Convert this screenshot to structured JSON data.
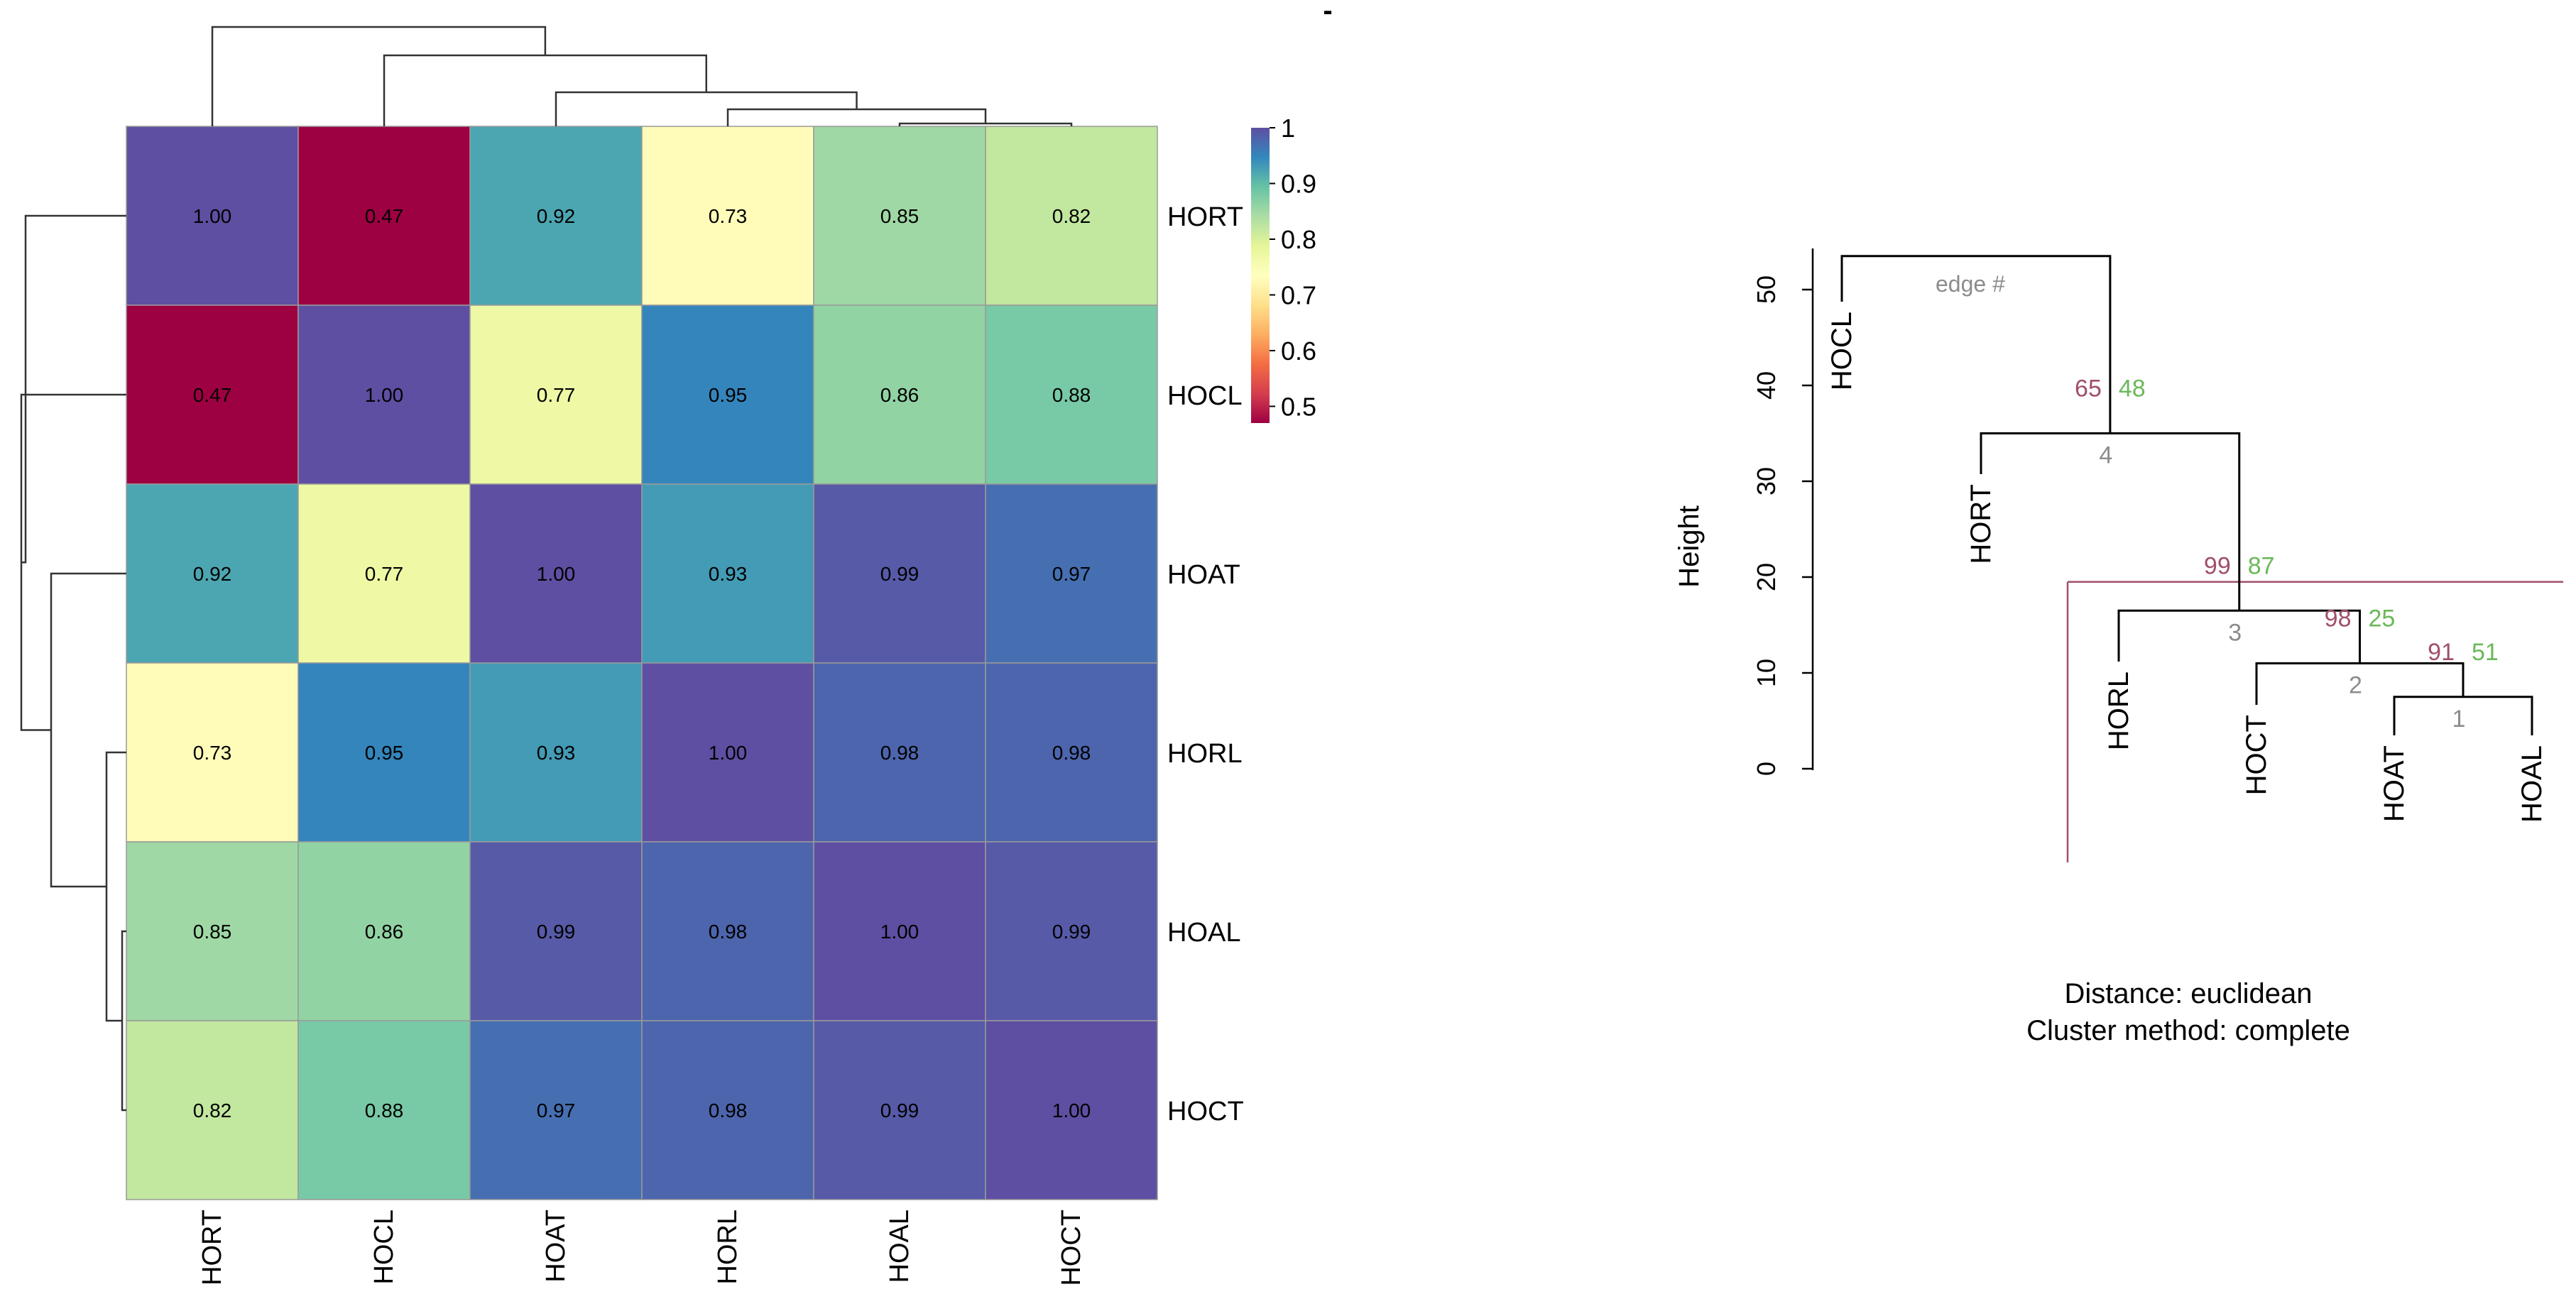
{
  "chart_data": [
    {
      "type": "heatmap",
      "title": "",
      "rows": [
        "HORT",
        "HOCL",
        "HOAT",
        "HORL",
        "HOAL",
        "HOCT"
      ],
      "cols": [
        "HORT",
        "HOCL",
        "HOAT",
        "HORL",
        "HOAL",
        "HOCT"
      ],
      "values": [
        [
          1.0,
          0.47,
          0.92,
          0.73,
          0.85,
          0.82
        ],
        [
          0.47,
          1.0,
          0.77,
          0.95,
          0.86,
          0.88
        ],
        [
          0.92,
          0.77,
          1.0,
          0.93,
          0.99,
          0.97
        ],
        [
          0.73,
          0.95,
          0.93,
          1.0,
          0.98,
          0.98
        ],
        [
          0.85,
          0.86,
          0.99,
          0.98,
          1.0,
          0.99
        ],
        [
          0.82,
          0.88,
          0.97,
          0.98,
          0.99,
          1.0
        ]
      ],
      "value_labels": [
        [
          "1.00",
          "0.47",
          "0.92",
          "0.73",
          "0.85",
          "0.82"
        ],
        [
          "0.47",
          "1.00",
          "0.77",
          "0.95",
          "0.86",
          "0.88"
        ],
        [
          "0.92",
          "0.77",
          "1.00",
          "0.93",
          "0.99",
          "0.97"
        ],
        [
          "0.73",
          "0.95",
          "0.93",
          "1.00",
          "0.98",
          "0.98"
        ],
        [
          "0.85",
          "0.86",
          "0.99",
          "0.98",
          "1.00",
          "0.99"
        ],
        [
          "0.82",
          "0.88",
          "0.97",
          "0.98",
          "0.99",
          "1.00"
        ]
      ],
      "colorbar": {
        "range": [
          0.47,
          1.0
        ],
        "ticks": [
          0.5,
          0.6,
          0.7,
          0.8,
          0.9,
          1.0
        ],
        "tick_labels": [
          "0.5",
          "0.6",
          "0.7",
          "0.8",
          "0.9",
          "1"
        ],
        "palette": [
          "#9E0142",
          "#D53E4F",
          "#F46D43",
          "#FDAE61",
          "#FEE08B",
          "#FFFFBF",
          "#E6F598",
          "#ABDDA4",
          "#66C2A5",
          "#3288BD",
          "#5E4FA2"
        ]
      },
      "dendrogram": "complete linkage on rows and columns",
      "stray_mark": "-"
    },
    {
      "type": "dendrogram",
      "title": "",
      "ylabel": "Height",
      "ylim": [
        0,
        55
      ],
      "y_ticks": [
        0,
        10,
        20,
        30,
        40,
        50
      ],
      "y_tick_labels": [
        "0",
        "10",
        "20",
        "30",
        "40",
        "50"
      ],
      "leaves": [
        "HOCL",
        "HORT",
        "HORL",
        "HOCT",
        "HOAT",
        "HOAL"
      ],
      "merges": [
        {
          "edge": "1",
          "height": 7.5,
          "au": "91",
          "bp": "51",
          "members": [
            "HOAT",
            "HOAL"
          ]
        },
        {
          "edge": "2",
          "height": 11,
          "au": "98",
          "bp": "25",
          "members": [
            "HOCT",
            "HOAT",
            "HOAL"
          ]
        },
        {
          "edge": "3",
          "height": 16.5,
          "au": "99",
          "bp": "87",
          "members": [
            "HORL",
            "HOCT",
            "HOAT",
            "HOAL"
          ]
        },
        {
          "edge": "4",
          "height": 35,
          "au": "65",
          "bp": "48",
          "members": [
            "HORT",
            "HORL",
            "HOCT",
            "HOAT",
            "HOAL"
          ]
        },
        {
          "edge": "",
          "height": 53.5,
          "au": "",
          "bp": "",
          "members": [
            "HOCL",
            "HORT",
            "HORL",
            "HOCT",
            "HOAT",
            "HOAL"
          ]
        }
      ],
      "edge_label": "edge #",
      "cut_height": 19.5,
      "au_color": "#A0506A",
      "bp_color": "#6BB85A",
      "edge_color": "#8C8C8C",
      "distance_label": "Distance:  euclidean",
      "method_label": "Cluster method: complete"
    }
  ]
}
